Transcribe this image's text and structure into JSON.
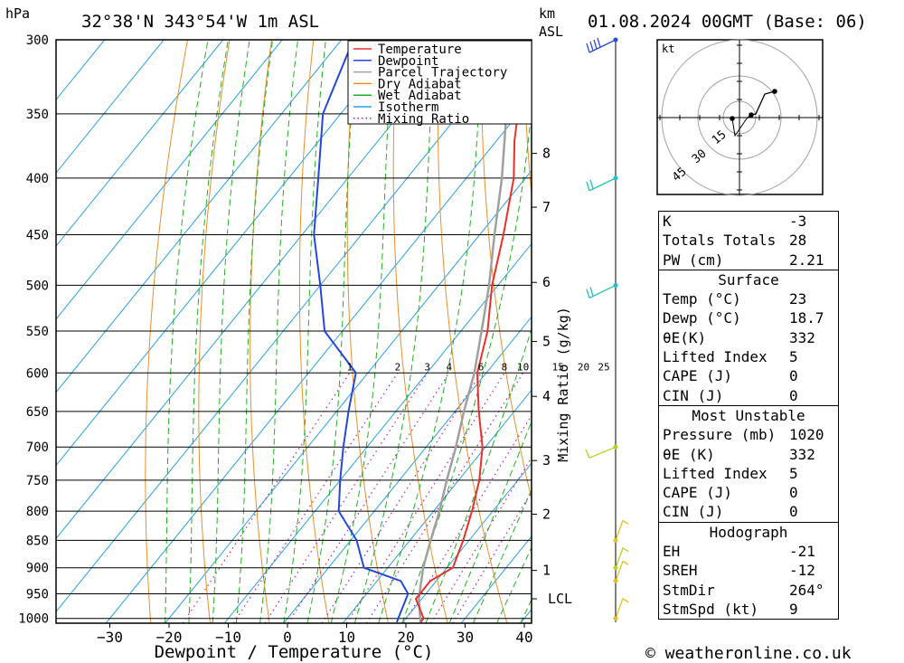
{
  "header": {
    "location": "32°38'N 343°54'W 1m ASL",
    "datetime": "01.08.2024 00GMT (Base: 06)",
    "pressure_unit": "hPa",
    "km_unit": "km",
    "asl_label": "ASL"
  },
  "credit": "© weatheronline.co.uk",
  "legend": [
    {
      "label": "Temperature",
      "color": "#e8302c",
      "style": "solid"
    },
    {
      "label": "Dewpoint",
      "color": "#2648d8",
      "style": "solid"
    },
    {
      "label": "Parcel Trajectory",
      "color": "#a0a0a0",
      "style": "solid"
    },
    {
      "label": "Dry Adiabat",
      "color": "#e8902a",
      "style": "solid"
    },
    {
      "label": "Wet Adiabat",
      "color": "#22b022",
      "style": "solid"
    },
    {
      "label": "Isotherm",
      "color": "#2aa0e0",
      "style": "solid"
    },
    {
      "label": "Mixing Ratio",
      "color": "#c0208a",
      "style": "dotted"
    }
  ],
  "chart_data": {
    "type": "skew-t",
    "xlabel": "Dewpoint / Temperature (°C)",
    "x_ticks": [
      -30,
      -20,
      -10,
      0,
      10,
      20,
      30,
      40
    ],
    "pressure_levels": [
      300,
      350,
      400,
      450,
      500,
      550,
      600,
      650,
      700,
      750,
      800,
      850,
      900,
      950,
      1000
    ],
    "height_km_ticks": [
      {
        "label": "8",
        "p": 380
      },
      {
        "label": "7",
        "p": 425
      },
      {
        "label": "6",
        "p": 497
      },
      {
        "label": "5",
        "p": 562
      },
      {
        "label": "4",
        "p": 630
      },
      {
        "label": "3",
        "p": 720
      },
      {
        "label": "2",
        "p": 805
      },
      {
        "label": "1",
        "p": 905
      },
      {
        "label": "LCL",
        "p": 960
      }
    ],
    "mixing_ratio_label": "Mixing Ratio (g/kg)",
    "mixing_ratio_values": [
      "1",
      "2",
      "3",
      "4",
      "6",
      "8",
      "10",
      "15",
      "20",
      "25"
    ],
    "temperature": [
      {
        "p": 1008,
        "t": 23
      },
      {
        "p": 1000,
        "t": 23
      },
      {
        "p": 960,
        "t": 19
      },
      {
        "p": 925,
        "t": 19
      },
      {
        "p": 900,
        "t": 21
      },
      {
        "p": 850,
        "t": 19
      },
      {
        "p": 800,
        "t": 16.5
      },
      {
        "p": 750,
        "t": 13.5
      },
      {
        "p": 700,
        "t": 9.5
      },
      {
        "p": 650,
        "t": 4
      },
      {
        "p": 600,
        "t": -1.5
      },
      {
        "p": 550,
        "t": -5.5
      },
      {
        "p": 500,
        "t": -11
      },
      {
        "p": 450,
        "t": -16
      },
      {
        "p": 400,
        "t": -22
      },
      {
        "p": 370,
        "t": -27
      },
      {
        "p": 320,
        "t": -35
      },
      {
        "p": 300,
        "t": -38
      }
    ],
    "dewpoint": [
      {
        "p": 1008,
        "t": 19
      },
      {
        "p": 1000,
        "t": 18.7
      },
      {
        "p": 950,
        "t": 17
      },
      {
        "p": 925,
        "t": 14
      },
      {
        "p": 900,
        "t": 6
      },
      {
        "p": 850,
        "t": 1
      },
      {
        "p": 800,
        "t": -6
      },
      {
        "p": 750,
        "t": -10
      },
      {
        "p": 700,
        "t": -14
      },
      {
        "p": 650,
        "t": -18
      },
      {
        "p": 600,
        "t": -22
      },
      {
        "p": 550,
        "t": -33
      },
      {
        "p": 500,
        "t": -40
      },
      {
        "p": 450,
        "t": -48
      },
      {
        "p": 400,
        "t": -55
      },
      {
        "p": 350,
        "t": -63
      },
      {
        "p": 300,
        "t": -68
      }
    ],
    "parcel": [
      {
        "p": 1008,
        "t": 23
      },
      {
        "p": 960,
        "t": 19.5
      },
      {
        "p": 900,
        "t": 16
      },
      {
        "p": 850,
        "t": 13.5
      },
      {
        "p": 800,
        "t": 11
      },
      {
        "p": 750,
        "t": 8
      },
      {
        "p": 700,
        "t": 5
      },
      {
        "p": 650,
        "t": 1.5
      },
      {
        "p": 600,
        "t": -2
      },
      {
        "p": 550,
        "t": -6.5
      },
      {
        "p": 500,
        "t": -11.5
      },
      {
        "p": 450,
        "t": -17.5
      },
      {
        "p": 400,
        "t": -24
      },
      {
        "p": 350,
        "t": -32
      },
      {
        "p": 310,
        "t": -39
      }
    ],
    "wind_barb_levels": [
      {
        "p": 300,
        "color": "#2648d8"
      },
      {
        "p": 400,
        "color": "#20c0c0"
      },
      {
        "p": 500,
        "color": "#20c0c0"
      },
      {
        "p": 700,
        "color": "#b8d020"
      },
      {
        "p": 850,
        "color": "#e0c020"
      },
      {
        "p": 900,
        "color": "#b8d020"
      },
      {
        "p": 925,
        "color": "#e0c020"
      },
      {
        "p": 1000,
        "color": "#e0c020"
      }
    ]
  },
  "hodograph": {
    "unit": "kt",
    "ring_labels": [
      "15",
      "30",
      "45"
    ]
  },
  "indices": [
    {
      "label": "K",
      "value": "-3"
    },
    {
      "label": "Totals Totals",
      "value": "28"
    },
    {
      "label": "PW (cm)",
      "value": "2.21"
    }
  ],
  "surface": {
    "title": "Surface",
    "rows": [
      {
        "label": "Temp (°C)",
        "value": "23"
      },
      {
        "label": "Dewp (°C)",
        "value": "18.7"
      },
      {
        "label": "θE(K)",
        "value": "332"
      },
      {
        "label": "Lifted Index",
        "value": "5"
      },
      {
        "label": "CAPE (J)",
        "value": "0"
      },
      {
        "label": "CIN (J)",
        "value": "0"
      }
    ]
  },
  "most_unstable": {
    "title": "Most Unstable",
    "rows": [
      {
        "label": "Pressure (mb)",
        "value": "1020"
      },
      {
        "label": "θE (K)",
        "value": "332"
      },
      {
        "label": "Lifted Index",
        "value": "5"
      },
      {
        "label": "CAPE (J)",
        "value": "0"
      },
      {
        "label": "CIN (J)",
        "value": "0"
      }
    ]
  },
  "hodograph_table": {
    "title": "Hodograph",
    "rows": [
      {
        "label": "EH",
        "value": "-21"
      },
      {
        "label": "SREH",
        "value": "-12"
      },
      {
        "label": "StmDir",
        "value": "264°"
      },
      {
        "label": "StmSpd (kt)",
        "value": "9"
      }
    ]
  }
}
